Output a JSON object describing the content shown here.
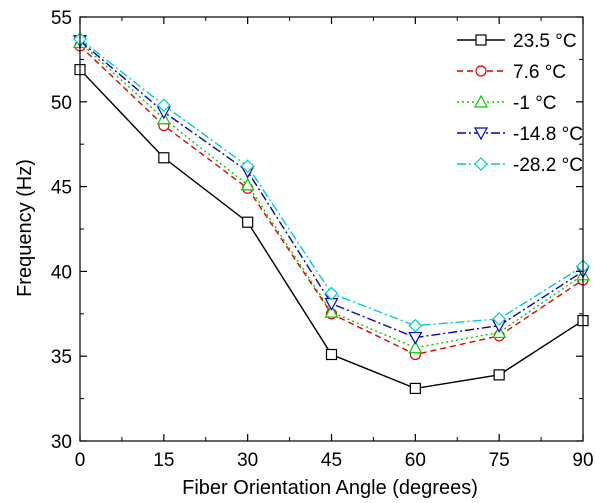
{
  "chart_data": {
    "type": "line",
    "title": "",
    "xlabel": "Fiber Orientation Angle (degrees)",
    "ylabel": "Frequency (Hz)",
    "x": [
      0,
      15,
      30,
      45,
      60,
      75,
      90
    ],
    "xlim": [
      0,
      90
    ],
    "ylim": [
      30,
      55
    ],
    "xticks": [
      "0",
      "15",
      "30",
      "45",
      "60",
      "75",
      "90"
    ],
    "yticks": [
      "30",
      "35",
      "40",
      "45",
      "50",
      "55"
    ],
    "grid": false,
    "legend_position": "top-right",
    "series": [
      {
        "name": "23.5",
        "unit": "°C",
        "color": "#000000",
        "dash": "solid",
        "marker": "square",
        "values": [
          51.9,
          46.7,
          42.9,
          35.1,
          33.1,
          33.9,
          37.1
        ]
      },
      {
        "name": "7.6",
        "unit": "°C",
        "color": "#e00000",
        "dash": "dash",
        "marker": "circle",
        "values": [
          53.3,
          48.6,
          44.9,
          37.5,
          35.1,
          36.2,
          39.5
        ]
      },
      {
        "name": "-1",
        "unit": "°C",
        "color": "#00cc00",
        "dash": "dot",
        "marker": "triangle-up",
        "values": [
          53.5,
          49.0,
          45.1,
          37.6,
          35.5,
          36.4,
          39.8
        ]
      },
      {
        "name": "-14.8",
        "unit": "°C",
        "color": "#0000cc",
        "dash": "dashdot",
        "marker": "triangle-down",
        "values": [
          53.6,
          49.4,
          45.9,
          38.1,
          36.1,
          36.8,
          40.0
        ]
      },
      {
        "name": "-28.2",
        "unit": "°C",
        "color": "#00cccc",
        "dash": "dashdot",
        "marker": "diamond",
        "values": [
          53.7,
          49.8,
          46.2,
          38.7,
          36.8,
          37.2,
          40.3
        ]
      }
    ]
  }
}
